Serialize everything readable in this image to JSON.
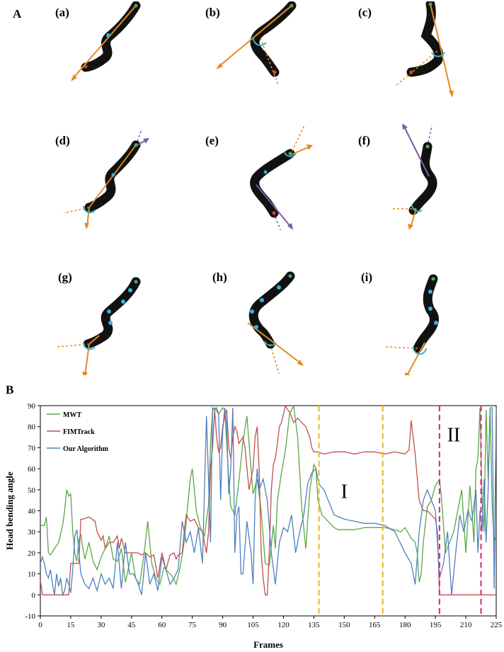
{
  "panel_a": {
    "letter": "A",
    "subpanels": [
      "(a)",
      "(b)",
      "(c)",
      "(d)",
      "(e)",
      "(f)",
      "(g)",
      "(h)",
      "(i)"
    ]
  },
  "panel_b": {
    "letter": "B"
  },
  "colors": {
    "worm": "#111111",
    "orange": "#e8891e",
    "purple": "#7a5ca8",
    "cyan": "#2fb7d6",
    "green_dot": "#4caf50",
    "red_dot": "#d9452f",
    "mwt": "#5aa846",
    "fimtrack": "#c0504d",
    "ours": "#4f81bd",
    "yellow_dash": "#e6b822",
    "magenta_dash": "#d6247c"
  },
  "chart_data": {
    "type": "line",
    "xlabel": "Frames",
    "ylabel": "Head bending angle",
    "xlim": [
      0,
      225
    ],
    "ylim": [
      -10,
      90
    ],
    "xticks": [
      0,
      15,
      30,
      45,
      60,
      75,
      90,
      105,
      120,
      135,
      150,
      165,
      180,
      195,
      210,
      225
    ],
    "yticks": [
      -10,
      0,
      10,
      20,
      30,
      40,
      50,
      60,
      70,
      80,
      90
    ],
    "legend_position": "top-left",
    "annotations": [
      {
        "text": "I",
        "x": 150,
        "y": 46
      },
      {
        "text": "II",
        "x": 204,
        "y": 73
      }
    ],
    "vlines": [
      {
        "x": 137.5,
        "color": "yellow"
      },
      {
        "x": 169,
        "color": "yellow"
      },
      {
        "x": 197,
        "color": "magenta"
      },
      {
        "x": 217.5,
        "color": "magenta"
      }
    ],
    "series": [
      {
        "name": "MWT",
        "x": [
          0,
          2,
          3,
          4,
          5,
          7,
          9,
          11,
          12,
          13,
          14,
          15,
          16,
          17,
          18,
          19,
          20,
          21,
          22,
          24,
          26,
          28,
          30,
          32,
          34,
          36,
          38,
          40,
          42,
          44,
          45,
          47,
          49,
          51,
          53,
          55,
          57,
          59,
          61,
          63,
          65,
          67,
          69,
          71,
          73,
          74,
          75,
          76,
          77,
          79,
          81,
          83,
          84,
          85,
          86,
          88,
          90,
          91,
          93,
          94,
          96,
          98,
          100,
          102,
          103,
          105,
          107,
          109,
          111,
          113,
          115,
          116,
          117,
          119,
          121,
          123,
          125,
          127,
          129,
          131,
          133,
          135,
          136,
          137,
          139,
          141,
          143,
          145,
          147,
          150,
          155,
          160,
          165,
          170,
          175,
          178,
          180,
          183,
          185,
          186,
          187,
          188,
          189,
          191,
          193,
          195,
          197,
          198,
          200,
          202,
          204,
          206,
          208,
          210,
          212,
          213,
          214,
          215,
          216,
          217,
          218,
          219,
          220,
          221,
          222,
          223,
          224,
          225
        ],
        "y": [
          33,
          33,
          37,
          20,
          19,
          22,
          25,
          33,
          40,
          50,
          47,
          48,
          30,
          20,
          16,
          26,
          29,
          22,
          17,
          25,
          16,
          12,
          18,
          22,
          28,
          17,
          16,
          22,
          6,
          15,
          20,
          8,
          5,
          18,
          35,
          15,
          8,
          5,
          13,
          11,
          9,
          5,
          13,
          25,
          45,
          55,
          60,
          50,
          40,
          32,
          28,
          43,
          72,
          88,
          89,
          86,
          89,
          88,
          55,
          42,
          38,
          54,
          73,
          85,
          72,
          48,
          55,
          40,
          15,
          14,
          33,
          22,
          45,
          58,
          69,
          86,
          90,
          75,
          42,
          22,
          50,
          62,
          60,
          45,
          38,
          36,
          34,
          32,
          31,
          31,
          31,
          32,
          32,
          32,
          31,
          30,
          32,
          27,
          25,
          20,
          6,
          10,
          25,
          42,
          45,
          52,
          55,
          46,
          20,
          25,
          30,
          40,
          50,
          20,
          52,
          40,
          25,
          60,
          65,
          89,
          45,
          30,
          88,
          55,
          89,
          42,
          25,
          28
        ]
      },
      {
        "name": "FIMTrack",
        "x": [
          0,
          1,
          2,
          5,
          10,
          14,
          15,
          16,
          17,
          18,
          19,
          20,
          21,
          24,
          27,
          28,
          30,
          31,
          32,
          34,
          36,
          38,
          39,
          40,
          42,
          44,
          46,
          48,
          50,
          52,
          54,
          56,
          58,
          60,
          62,
          64,
          66,
          67,
          68,
          70,
          71,
          72,
          74,
          76,
          78,
          80,
          81,
          82,
          83,
          84,
          85,
          86,
          87,
          88,
          89,
          90,
          91,
          92,
          93,
          94,
          95,
          96,
          97,
          98,
          100,
          101,
          103,
          105,
          106,
          107,
          108,
          109,
          110,
          111,
          112,
          113,
          114,
          115,
          116,
          117,
          118,
          119,
          120,
          121,
          122,
          123,
          125,
          127,
          129,
          131,
          133,
          134,
          135,
          137,
          140,
          145,
          150,
          155,
          160,
          165,
          170,
          175,
          180,
          182,
          183,
          185,
          187,
          189,
          191,
          193,
          195,
          196,
          197,
          200,
          205,
          210,
          215,
          220,
          225
        ],
        "y": [
          7,
          0,
          0,
          0,
          0,
          0,
          15,
          15,
          15,
          15,
          15,
          36,
          36,
          37,
          35,
          30,
          26,
          28,
          22,
          25,
          25,
          28,
          22,
          27,
          20,
          20,
          20,
          20,
          19,
          20,
          18,
          19,
          8,
          20,
          12,
          19,
          20,
          17,
          19,
          20,
          30,
          38,
          35,
          36,
          32,
          30,
          25,
          20,
          30,
          60,
          70,
          88,
          75,
          68,
          70,
          80,
          85,
          88,
          70,
          65,
          75,
          80,
          78,
          72,
          75,
          70,
          50,
          60,
          75,
          80,
          60,
          20,
          8,
          0,
          0,
          20,
          50,
          62,
          65,
          72,
          80,
          82,
          86,
          90,
          88,
          87,
          82,
          84,
          82,
          80,
          75,
          70,
          68,
          68,
          67,
          68,
          68,
          67,
          68,
          68,
          67,
          68,
          67,
          69,
          83,
          67,
          45,
          40,
          40,
          38,
          36,
          30,
          0,
          0,
          0,
          0,
          0,
          0,
          0
        ]
      },
      {
        "name": "Our Algorithm",
        "x": [
          0,
          1,
          2,
          3,
          4,
          5,
          6,
          7,
          8,
          9,
          10,
          11,
          12,
          13,
          14,
          15,
          16,
          17,
          18,
          20,
          22,
          24,
          26,
          28,
          30,
          32,
          34,
          36,
          38,
          40,
          42,
          44,
          46,
          48,
          50,
          52,
          54,
          56,
          58,
          60,
          62,
          64,
          66,
          68,
          70,
          72,
          74,
          76,
          78,
          80,
          82,
          84,
          85,
          86,
          87,
          88,
          89,
          90,
          91,
          92,
          93,
          94,
          95,
          96,
          97,
          98,
          99,
          100,
          102,
          104,
          105,
          106,
          107,
          108,
          110,
          112,
          114,
          116,
          118,
          120,
          122,
          124,
          126,
          128,
          130,
          132,
          134,
          136,
          137,
          138,
          140,
          145,
          150,
          155,
          160,
          165,
          170,
          175,
          180,
          183,
          185,
          187,
          189,
          191,
          193,
          195,
          196,
          197,
          199,
          201,
          203,
          205,
          207,
          209,
          211,
          213,
          215,
          216,
          217,
          218,
          219,
          220,
          221,
          222,
          223,
          224,
          225
        ],
        "y": [
          15,
          18,
          15,
          10,
          8,
          12,
          5,
          0,
          10,
          4,
          8,
          0,
          2,
          8,
          5,
          1,
          12,
          28,
          31,
          10,
          5,
          3,
          8,
          2,
          10,
          5,
          8,
          3,
          25,
          3,
          25,
          10,
          10,
          6,
          0,
          20,
          5,
          10,
          2,
          18,
          12,
          5,
          8,
          12,
          35,
          25,
          30,
          20,
          32,
          15,
          85,
          25,
          89,
          88,
          89,
          86,
          45,
          78,
          89,
          80,
          48,
          60,
          89,
          20,
          38,
          42,
          10,
          10,
          35,
          20,
          5,
          45,
          60,
          50,
          55,
          45,
          20,
          5,
          25,
          32,
          30,
          38,
          20,
          30,
          38,
          53,
          58,
          60,
          55,
          52,
          50,
          38,
          36,
          35,
          34,
          34,
          33,
          30,
          20,
          15,
          5,
          30,
          45,
          50,
          45,
          40,
          25,
          8,
          15,
          30,
          0,
          20,
          38,
          30,
          40,
          35,
          50,
          20,
          40,
          30,
          55,
          25,
          50,
          89,
          89,
          3,
          89
        ]
      }
    ]
  }
}
